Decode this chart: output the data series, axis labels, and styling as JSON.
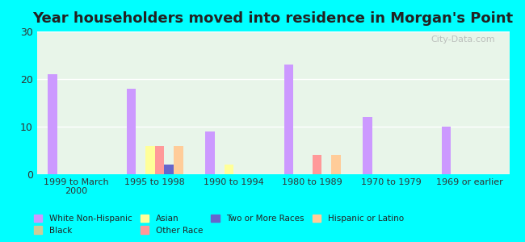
{
  "title": "Year householders moved into residence in Morgan's Point",
  "background_color": "#00FFFF",
  "plot_bg_top": "#e8f5e9",
  "plot_bg_bottom": "#f5fff5",
  "categories": [
    "1999 to March\n2000",
    "1995 to 1998",
    "1990 to 1994",
    "1980 to 1989",
    "1970 to 1979",
    "1969 or earlier"
  ],
  "series": {
    "White Non-Hispanic": {
      "color": "#cc99ff",
      "values": [
        21,
        18,
        9,
        23,
        12,
        10
      ]
    },
    "Black": {
      "color": "#cccc99",
      "values": [
        0,
        0,
        0,
        0,
        0,
        0
      ]
    },
    "Asian": {
      "color": "#ffff99",
      "values": [
        0,
        6,
        2,
        0,
        0,
        0
      ]
    },
    "Other Race": {
      "color": "#ff9999",
      "values": [
        0,
        6,
        0,
        4,
        0,
        0
      ]
    },
    "Two or More Races": {
      "color": "#6666cc",
      "values": [
        0,
        2,
        0,
        0,
        0,
        0
      ]
    },
    "Hispanic or Latino": {
      "color": "#ffcc99",
      "values": [
        0,
        6,
        0,
        4,
        0,
        0
      ]
    }
  },
  "ylim": [
    0,
    30
  ],
  "yticks": [
    0,
    10,
    20,
    30
  ],
  "bar_width": 0.12,
  "watermark": "City-Data.com"
}
